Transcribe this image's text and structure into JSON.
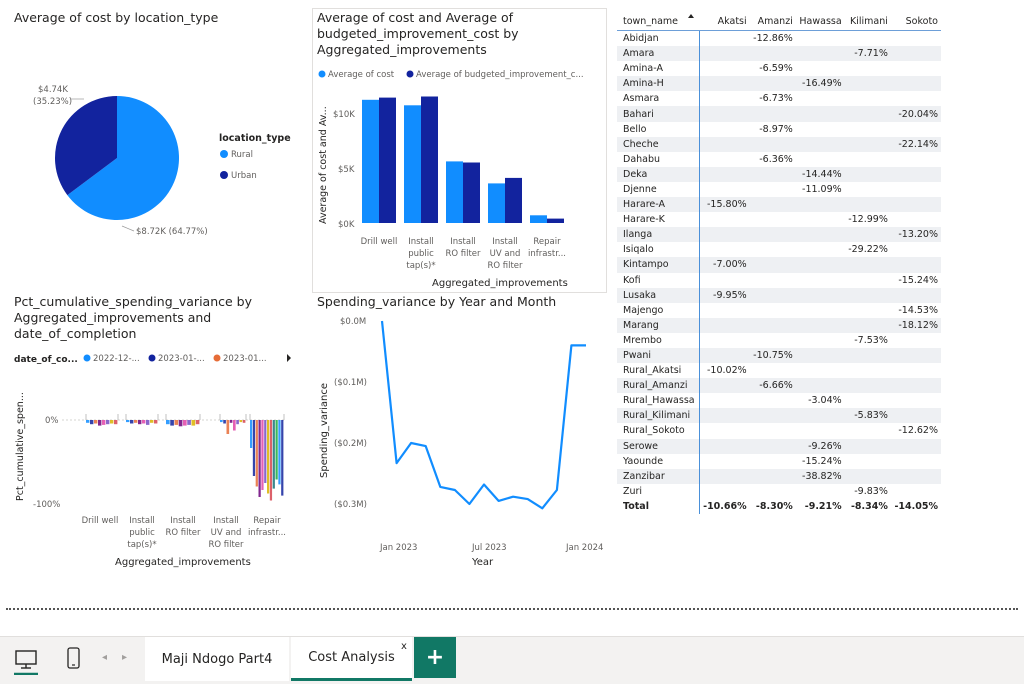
{
  "pie": {
    "title": "Average of cost by location_type",
    "legend_title": "location_type",
    "slices": [
      {
        "label": "Rural",
        "value": 8.72,
        "pct": 64.77,
        "display": "$8.72K (64.77%)",
        "color": "#118dff"
      },
      {
        "label": "Urban",
        "value": 4.74,
        "pct": 35.23,
        "display": "$4.74K",
        "display2": "(35.23%)",
        "color": "#12239e"
      }
    ]
  },
  "bar": {
    "title_lines": [
      "Average of cost and Average of",
      "budgeted_improvement_cost by",
      "Aggregated_improvements"
    ],
    "legend": [
      "Average of cost",
      "Average of budgeted_improvement_c..."
    ],
    "ylabel_lines": [
      "Average of cost and Av..."
    ],
    "xlabel": "Aggregated_improvements",
    "yticks": [
      "$0K",
      "$5K",
      "$10K"
    ],
    "categories": [
      [
        "Drill well"
      ],
      [
        "Install",
        "public",
        "tap(s)*"
      ],
      [
        "Install",
        "RO filter"
      ],
      [
        "Install",
        "UV and",
        "RO filter"
      ],
      [
        "Repair",
        "infrastr..."
      ]
    ],
    "colors": [
      "#118dff",
      "#12239e"
    ]
  },
  "pct": {
    "title_lines": [
      "Pct_cumulative_spending_variance by",
      "Aggregated_improvements and",
      "date_of_completion"
    ],
    "legend_title": "date_of_co...",
    "legend": [
      {
        "label": "2022-12-...",
        "color": "#118dff"
      },
      {
        "label": "2023-01-...",
        "color": "#12239e"
      },
      {
        "label": "2023-01...",
        "color": "#e66c37"
      }
    ],
    "ylabel": "Pct_cumulative_spen...",
    "yticks": [
      "0%",
      "-100%"
    ],
    "xlabel": "Aggregated_improvements",
    "categories": [
      [
        "Drill well"
      ],
      [
        "Install",
        "public",
        "tap(s)*"
      ],
      [
        "Install",
        "RO filter"
      ],
      [
        "Install",
        "UV and",
        "RO filter"
      ],
      [
        "Repair",
        "infrastr..."
      ]
    ]
  },
  "line": {
    "title": "Spending_variance by Year and Month",
    "ylabel": "Spending_variance",
    "xlabel": "Year",
    "yticks": [
      "$0.0M",
      "($0.1M)",
      "($0.2M)",
      "($0.3M)"
    ],
    "xticks": [
      "Jan 2023",
      "Jul 2023",
      "Jan 2024"
    ],
    "color": "#118dff"
  },
  "chart_data": [
    {
      "type": "pie",
      "title": "Average of cost by location_type",
      "categories": [
        "Rural",
        "Urban"
      ],
      "values": [
        8.72,
        4.74
      ],
      "unit": "$K"
    },
    {
      "type": "bar",
      "title": "Average of cost and Average of budgeted_improvement_cost by Aggregated_improvements",
      "categories": [
        "Drill well",
        "Install public tap(s)*",
        "Install RO filter",
        "Install UV and RO filter",
        "Repair infrastr..."
      ],
      "series": [
        {
          "name": "Average of cost",
          "values": [
            11.2,
            10.7,
            5.6,
            3.6,
            0.7
          ]
        },
        {
          "name": "Average of budgeted_improvement_c...",
          "values": [
            11.4,
            11.5,
            5.5,
            4.1,
            0.4
          ]
        }
      ],
      "ylim": [
        0,
        12
      ],
      "xlabel": "Aggregated_improvements",
      "ylabel": "Average of cost and Av..."
    },
    {
      "type": "line",
      "title": "Spending_variance by Year and Month",
      "xlabel": "Year",
      "ylabel": "Spending_variance",
      "series": [
        {
          "x": [
            "2022-11",
            "2022-12",
            "2023-01",
            "2023-02",
            "2023-03",
            "2023-04",
            "2023-05",
            "2023-06",
            "2023-07",
            "2023-08",
            "2023-09",
            "2023-10",
            "2023-11",
            "2023-12",
            "2024-01"
          ],
          "values": [
            0.0,
            -0.233,
            -0.2,
            -0.205,
            -0.272,
            -0.277,
            -0.3,
            -0.268,
            -0.295,
            -0.288,
            -0.292,
            -0.307,
            -0.277,
            -0.04,
            -0.04
          ]
        }
      ],
      "ylim": [
        -0.3,
        0.0
      ],
      "unit": "$M"
    }
  ],
  "matrix": {
    "headers": [
      "town_name",
      "Akatsi",
      "Amanzi",
      "Hawassa",
      "Kilimani",
      "Sokoto"
    ],
    "rows": [
      [
        "Abidjan",
        "",
        "-12.86%",
        "",
        "",
        ""
      ],
      [
        "Amara",
        "",
        "",
        "",
        "-7.71%",
        ""
      ],
      [
        "Amina-A",
        "",
        "-6.59%",
        "",
        "",
        ""
      ],
      [
        "Amina-H",
        "",
        "",
        "-16.49%",
        "",
        ""
      ],
      [
        "Asmara",
        "",
        "-6.73%",
        "",
        "",
        ""
      ],
      [
        "Bahari",
        "",
        "",
        "",
        "",
        "-20.04%"
      ],
      [
        "Bello",
        "",
        "-8.97%",
        "",
        "",
        ""
      ],
      [
        "Cheche",
        "",
        "",
        "",
        "",
        "-22.14%"
      ],
      [
        "Dahabu",
        "",
        "-6.36%",
        "",
        "",
        ""
      ],
      [
        "Deka",
        "",
        "",
        "-14.44%",
        "",
        ""
      ],
      [
        "Djenne",
        "",
        "",
        "-11.09%",
        "",
        ""
      ],
      [
        "Harare-A",
        "-15.80%",
        "",
        "",
        "",
        ""
      ],
      [
        "Harare-K",
        "",
        "",
        "",
        "-12.99%",
        ""
      ],
      [
        "Ilanga",
        "",
        "",
        "",
        "",
        "-13.20%"
      ],
      [
        "Isiqalo",
        "",
        "",
        "",
        "-29.22%",
        ""
      ],
      [
        "Kintampo",
        "-7.00%",
        "",
        "",
        "",
        ""
      ],
      [
        "Kofi",
        "",
        "",
        "",
        "",
        "-15.24%"
      ],
      [
        "Lusaka",
        "-9.95%",
        "",
        "",
        "",
        ""
      ],
      [
        "Majengo",
        "",
        "",
        "",
        "",
        "-14.53%"
      ],
      [
        "Marang",
        "",
        "",
        "",
        "",
        "-18.12%"
      ],
      [
        "Mrembo",
        "",
        "",
        "",
        "-7.53%",
        ""
      ],
      [
        "Pwani",
        "",
        "-10.75%",
        "",
        "",
        ""
      ],
      [
        "Rural_Akatsi",
        "-10.02%",
        "",
        "",
        "",
        ""
      ],
      [
        "Rural_Amanzi",
        "",
        "-6.66%",
        "",
        "",
        ""
      ],
      [
        "Rural_Hawassa",
        "",
        "",
        "-3.04%",
        "",
        ""
      ],
      [
        "Rural_Kilimani",
        "",
        "",
        "",
        "-5.83%",
        ""
      ],
      [
        "Rural_Sokoto",
        "",
        "",
        "",
        "",
        "-12.62%"
      ],
      [
        "Serowe",
        "",
        "",
        "-9.26%",
        "",
        ""
      ],
      [
        "Yaounde",
        "",
        "",
        "-15.24%",
        "",
        ""
      ],
      [
        "Zanzibar",
        "",
        "",
        "-38.82%",
        "",
        ""
      ],
      [
        "Zuri",
        "",
        "",
        "",
        "-9.83%",
        ""
      ]
    ],
    "total": [
      "Total",
      "-10.66%",
      "-8.30%",
      "-9.21%",
      "-8.34%",
      "-14.05%"
    ]
  },
  "tabs": {
    "page1": "Maji Ndogo Part4",
    "page2": "Cost Analysis",
    "close": "x",
    "add": "+"
  }
}
